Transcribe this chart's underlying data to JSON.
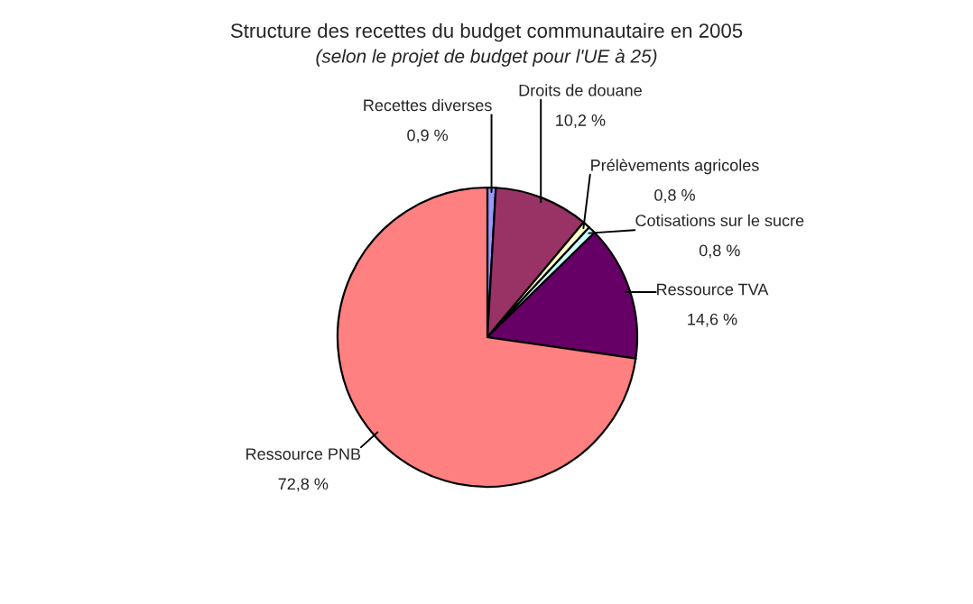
{
  "chart_data": {
    "type": "pie",
    "title": "Structure des recettes du budget communautaire en 2005",
    "subtitle": "(selon le projet de budget pour l'UE à 25)",
    "categories": [
      "Recettes diverses",
      "Droits de douane",
      "Prélèvements agricoles",
      "Cotisations sur le sucre",
      "Ressource TVA",
      "Ressource PNB"
    ],
    "values": [
      0.9,
      10.2,
      0.8,
      0.8,
      14.6,
      72.8
    ],
    "value_labels": [
      "0,9 %",
      "10,2 %",
      "0,8 %",
      "0,8 %",
      "14,6 %",
      "72,8 %"
    ],
    "colors": [
      "#9999ff",
      "#993366",
      "#ffffcc",
      "#ccffff",
      "#660066",
      "#ff8080"
    ]
  }
}
